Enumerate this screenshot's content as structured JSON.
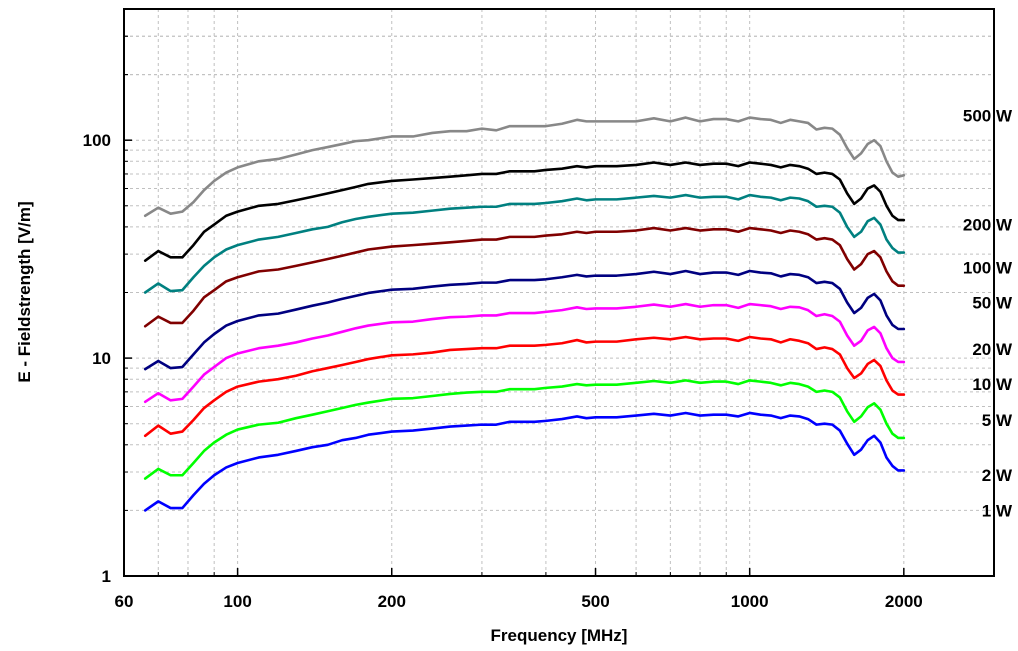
{
  "chart_data": {
    "type": "line",
    "title": "",
    "xlabel": "Frequency [MHz]",
    "ylabel": "E - Fieldstrength [V/m]",
    "x_scale": "log",
    "y_scale": "log",
    "xlim": [
      60,
      3000
    ],
    "ylim": [
      1,
      400
    ],
    "grid": true,
    "x_ticks": [
      60,
      100,
      200,
      500,
      1000,
      2000
    ],
    "x_tick_labels": [
      "60",
      "100",
      "200",
      "500",
      "1000",
      "2000"
    ],
    "y_ticks": [
      1,
      10,
      100
    ],
    "y_tick_labels": [
      "1",
      "10",
      "100"
    ],
    "legend": "series labels at right end of each line",
    "x": [
      66,
      70,
      74,
      78,
      82,
      86,
      90,
      95,
      100,
      110,
      120,
      130,
      140,
      150,
      160,
      170,
      180,
      200,
      220,
      240,
      260,
      280,
      300,
      320,
      340,
      360,
      380,
      400,
      430,
      460,
      480,
      500,
      550,
      600,
      650,
      700,
      750,
      800,
      850,
      900,
      950,
      1000,
      1050,
      1100,
      1150,
      1200,
      1250,
      1300,
      1350,
      1400,
      1450,
      1500,
      1550,
      1600,
      1650,
      1700,
      1750,
      1800,
      1850,
      1900,
      1950,
      2000
    ],
    "series": [
      {
        "name": "500 W",
        "color": "#888888",
        "values": [
          45,
          49,
          46,
          47,
          52,
          59,
          65,
          71,
          75,
          80,
          82,
          86,
          90,
          93,
          96,
          99,
          100,
          104,
          104,
          108,
          110,
          110,
          113,
          111,
          116,
          116,
          116,
          116,
          119,
          124,
          122,
          122,
          122,
          122,
          126,
          122,
          127,
          122,
          125,
          125,
          122,
          127,
          125,
          124,
          120,
          124,
          122,
          120,
          112,
          114,
          113,
          106,
          92,
          82,
          87,
          96,
          100,
          94,
          80,
          71,
          68,
          69
        ]
      },
      {
        "name": "200 W",
        "color": "#000000",
        "values": [
          28,
          31,
          29,
          29,
          33,
          38,
          41,
          45,
          47,
          50,
          51,
          53,
          55,
          57,
          59,
          61,
          63,
          65,
          66,
          67,
          68,
          69,
          70,
          70,
          72,
          72,
          72,
          73,
          74,
          76,
          75,
          76,
          76,
          77,
          79,
          77,
          79,
          77,
          78,
          78,
          76,
          79,
          78,
          77,
          75,
          77,
          76,
          74,
          70,
          71,
          70,
          66,
          57,
          51,
          54,
          60,
          62,
          58,
          50,
          45,
          43,
          43
        ]
      },
      {
        "name": "100 W",
        "color": "#008080",
        "values": [
          20,
          22,
          20.3,
          20.5,
          23.5,
          26.5,
          29,
          31.5,
          33,
          35,
          36,
          37.5,
          39,
          40,
          42,
          43.5,
          44.5,
          46,
          46.5,
          47.5,
          48.5,
          49,
          49.5,
          49.5,
          51,
          51,
          51,
          51.5,
          52.5,
          54,
          53,
          53.5,
          53.5,
          54.5,
          55.5,
          54.5,
          56,
          54.5,
          55,
          55,
          53.5,
          56,
          55,
          54.5,
          53,
          54.5,
          54,
          52.5,
          49.5,
          50,
          49.5,
          46.5,
          40,
          36,
          38,
          42.5,
          44,
          41,
          35,
          32,
          30.5,
          30.5
        ]
      },
      {
        "name": "50 W",
        "color": "#800000",
        "values": [
          14,
          15.5,
          14.5,
          14.5,
          16.5,
          19,
          20.5,
          22.5,
          23.5,
          25,
          25.5,
          26.5,
          27.5,
          28.5,
          29.5,
          30.5,
          31.5,
          32.5,
          33,
          33.5,
          34,
          34.5,
          35,
          35,
          36,
          36,
          36,
          36.5,
          37,
          38,
          37.5,
          38,
          38,
          38.5,
          39.5,
          38.5,
          39.5,
          38.5,
          39,
          39,
          38,
          39.5,
          39,
          38.5,
          37.5,
          38.5,
          38,
          37,
          35,
          35.5,
          35,
          33,
          28.5,
          25.5,
          27,
          30,
          31,
          29,
          25,
          22.5,
          21.5,
          21.5
        ]
      },
      {
        "name": "20 W",
        "color": "#000080",
        "values": [
          8.9,
          9.7,
          9.0,
          9.1,
          10.4,
          11.8,
          12.9,
          14.1,
          14.8,
          15.7,
          16.0,
          16.7,
          17.4,
          18.0,
          18.7,
          19.3,
          19.9,
          20.6,
          20.8,
          21.3,
          21.7,
          21.9,
          22.2,
          22.2,
          22.8,
          22.8,
          22.8,
          23.0,
          23.5,
          24.1,
          23.7,
          23.9,
          23.9,
          24.3,
          24.9,
          24.3,
          25.1,
          24.3,
          24.7,
          24.7,
          24.1,
          25.1,
          24.7,
          24.5,
          23.7,
          24.3,
          24.1,
          23.5,
          22.1,
          22.4,
          22.1,
          20.8,
          18.0,
          16.1,
          17.0,
          18.9,
          19.7,
          18.4,
          15.7,
          14.2,
          13.6,
          13.6
        ]
      },
      {
        "name": "10 W",
        "color": "#ff00ff",
        "values": [
          6.3,
          6.9,
          6.4,
          6.5,
          7.4,
          8.4,
          9.1,
          10.0,
          10.5,
          11.1,
          11.4,
          11.8,
          12.3,
          12.7,
          13.2,
          13.7,
          14.1,
          14.6,
          14.7,
          15.1,
          15.4,
          15.5,
          15.7,
          15.7,
          16.1,
          16.1,
          16.1,
          16.3,
          16.6,
          17.1,
          16.8,
          16.9,
          16.9,
          17.2,
          17.6,
          17.2,
          17.7,
          17.2,
          17.5,
          17.5,
          17.0,
          17.7,
          17.5,
          17.3,
          16.8,
          17.2,
          17.1,
          16.6,
          15.6,
          15.9,
          15.6,
          14.7,
          12.7,
          11.4,
          12.0,
          13.4,
          13.9,
          13.0,
          11.1,
          10.0,
          9.6,
          9.6
        ]
      },
      {
        "name": "5 W",
        "color": "#ff0000",
        "values": [
          4.4,
          4.9,
          4.5,
          4.6,
          5.2,
          5.9,
          6.4,
          7.0,
          7.4,
          7.8,
          8.0,
          8.3,
          8.7,
          9.0,
          9.3,
          9.6,
          9.9,
          10.3,
          10.4,
          10.6,
          10.9,
          11.0,
          11.1,
          11.1,
          11.4,
          11.4,
          11.4,
          11.5,
          11.7,
          12.1,
          11.8,
          11.9,
          11.9,
          12.2,
          12.4,
          12.2,
          12.5,
          12.2,
          12.3,
          12.3,
          12.0,
          12.5,
          12.3,
          12.2,
          11.8,
          12.2,
          12.0,
          11.7,
          11.0,
          11.2,
          11.0,
          10.4,
          9.0,
          8.1,
          8.5,
          9.4,
          9.8,
          9.2,
          7.9,
          7.1,
          6.8,
          6.8
        ]
      },
      {
        "name": "2 W",
        "color": "#00ff00",
        "values": [
          2.8,
          3.1,
          2.9,
          2.9,
          3.3,
          3.75,
          4.1,
          4.45,
          4.7,
          4.95,
          5.05,
          5.3,
          5.5,
          5.7,
          5.9,
          6.1,
          6.25,
          6.5,
          6.55,
          6.7,
          6.85,
          6.95,
          7.0,
          7.0,
          7.2,
          7.2,
          7.2,
          7.3,
          7.4,
          7.6,
          7.5,
          7.55,
          7.55,
          7.7,
          7.85,
          7.7,
          7.9,
          7.7,
          7.8,
          7.8,
          7.6,
          7.9,
          7.8,
          7.7,
          7.5,
          7.7,
          7.6,
          7.4,
          7.0,
          7.1,
          7.0,
          6.6,
          5.7,
          5.1,
          5.4,
          5.95,
          6.2,
          5.8,
          5.0,
          4.5,
          4.3,
          4.3
        ]
      },
      {
        "name": "1 W",
        "color": "#0000ff",
        "values": [
          2.0,
          2.2,
          2.05,
          2.05,
          2.35,
          2.65,
          2.9,
          3.15,
          3.3,
          3.5,
          3.6,
          3.75,
          3.9,
          4.0,
          4.2,
          4.3,
          4.45,
          4.6,
          4.65,
          4.75,
          4.85,
          4.9,
          4.95,
          4.95,
          5.1,
          5.1,
          5.1,
          5.15,
          5.25,
          5.4,
          5.3,
          5.35,
          5.35,
          5.45,
          5.55,
          5.45,
          5.6,
          5.45,
          5.5,
          5.5,
          5.4,
          5.6,
          5.5,
          5.45,
          5.3,
          5.45,
          5.4,
          5.25,
          4.95,
          5.0,
          4.95,
          4.65,
          4.05,
          3.6,
          3.8,
          4.2,
          4.4,
          4.1,
          3.5,
          3.2,
          3.05,
          3.05
        ]
      }
    ]
  }
}
